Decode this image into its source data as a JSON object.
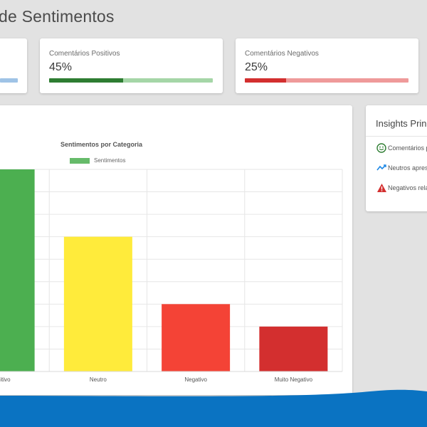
{
  "header": {
    "title": "de Sentimentos"
  },
  "metrics": [
    {
      "label": "",
      "value": "",
      "progress": null,
      "bar_color": "#9fc3e6",
      "track_color": "#9fc3e6"
    },
    {
      "label": "Comentários Positivos",
      "value": "45%",
      "progress": 0.45,
      "bar_color": "#2e7d32",
      "track_color": "#a5d6a7"
    },
    {
      "label": "Comentários Negativos",
      "value": "25%",
      "progress": 0.25,
      "bar_color": "#d32f2f",
      "track_color": "#ef9a9a"
    }
  ],
  "insights": {
    "title": "Insights Princ",
    "items": [
      {
        "icon": "smile-icon",
        "text": "Comentários p",
        "color": "#2e7d32"
      },
      {
        "icon": "trend-icon",
        "text": "Neutros apres",
        "color": "#1e88e5"
      },
      {
        "icon": "warning-icon",
        "text": "Negativos rela",
        "color": "#d32f2f"
      }
    ]
  },
  "chart_data": {
    "type": "bar",
    "title": "Sentimentos por Categoria",
    "categories": [
      "Positivo",
      "Neutro",
      "Negativo",
      "Muito Negativo"
    ],
    "series": [
      {
        "name": "Sentimentos",
        "values": [
          45,
          30,
          15,
          10
        ],
        "colors": [
          "#4caf50",
          "#ffeb3b",
          "#f44336",
          "#d32f2f"
        ]
      }
    ],
    "ylim": [
      0,
      45
    ],
    "grid": true,
    "legend_position": "top"
  },
  "colors": {
    "background": "#e2e2e2",
    "footer": "#0a73c2",
    "legend_swatch": "#66bb6a"
  }
}
